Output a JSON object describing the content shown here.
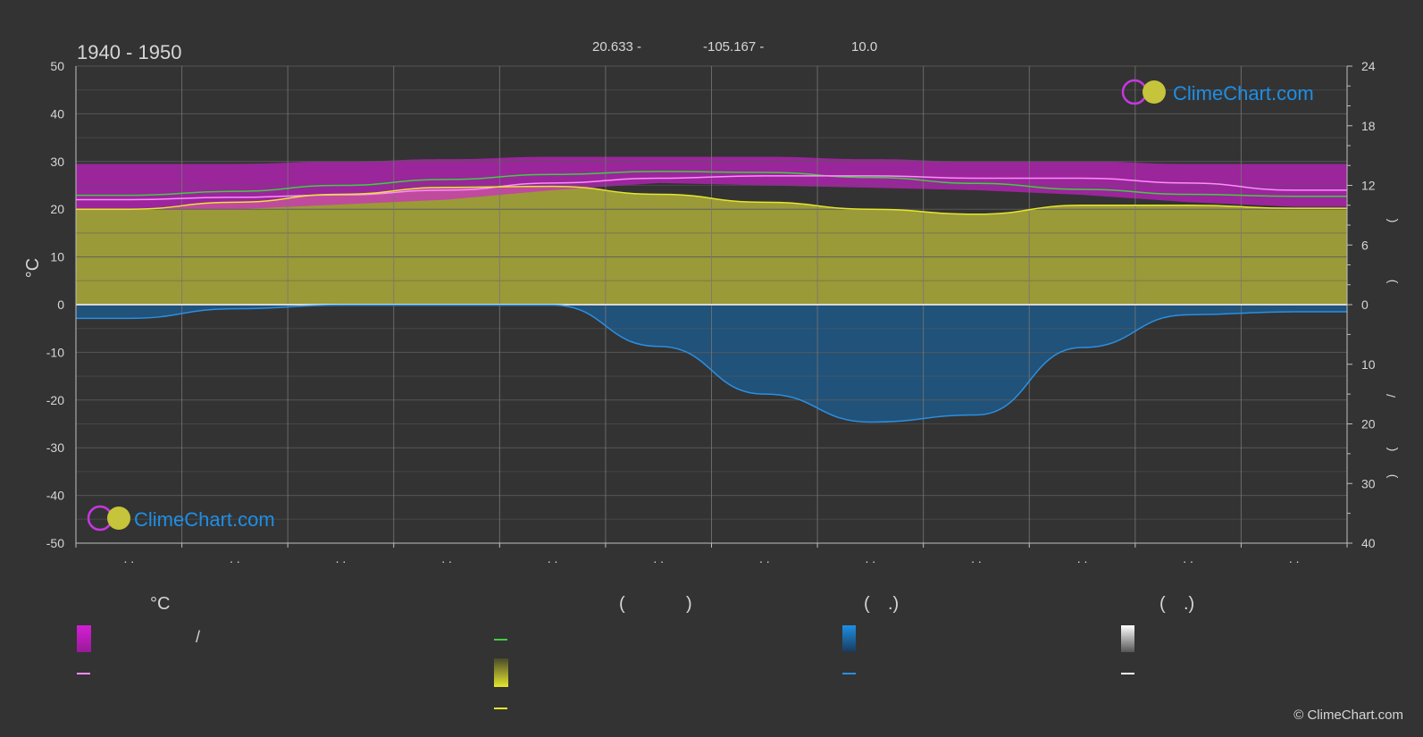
{
  "period": "1940 - 1950",
  "coords": {
    "lat": "20.633 -",
    "lon": "-105.167 -",
    "elev": "10.0"
  },
  "logo_text": "ClimeChart.com",
  "credit": "© ClimeChart.com",
  "left_unit": "°C",
  "right_unit_marks": [
    "(",
    ")",
    "(",
    ")",
    "/",
    "(",
    "·",
    ")"
  ],
  "month_marks": ". .",
  "legend": {
    "col1_title": "°C",
    "col1_slash": "/",
    "col2_title_a": "(",
    "col2_title_b": ")",
    "col3_title_a": "(",
    "col3_title_b": ".)",
    "col4_title_a": "(",
    "col4_title_b": ".)"
  },
  "colors": {
    "background": "#333333",
    "grid": "#5a5a5a",
    "temp_band": "#d41fd4",
    "temp_band_day": "#e46aa8",
    "sun_band": "#b5b43a",
    "precip_band": "#1a5f99",
    "daylight_line": "#3fce3f",
    "sun_line": "#e6e62e",
    "temp_line": "#ff8cff",
    "precip_line": "#2b8fe0",
    "logo_blue": "#1d8fe6"
  },
  "chart_data": {
    "type": "area",
    "x_months": 12,
    "left_axis": {
      "label": "°C",
      "range": [
        -50,
        50
      ],
      "ticks": [
        50,
        40,
        30,
        20,
        10,
        0,
        -10,
        -20,
        -30,
        -40,
        -50
      ]
    },
    "right_axis_top": {
      "range": [
        0,
        24
      ],
      "ticks": [
        24,
        18,
        12,
        6,
        0
      ]
    },
    "right_axis_bottom": {
      "range": [
        0,
        40
      ],
      "ticks": [
        0,
        10,
        20,
        30,
        40
      ]
    },
    "grid": true,
    "series": [
      {
        "key": "temp_max",
        "values": [
          29.5,
          29.5,
          30,
          30.5,
          31,
          31,
          31,
          30.5,
          30,
          30,
          29.5,
          29.5
        ]
      },
      {
        "key": "temp_min",
        "values": [
          20,
          20,
          21,
          22,
          24,
          25.5,
          25,
          24.5,
          24,
          23,
          21.5,
          20.5
        ]
      },
      {
        "key": "temp_mean",
        "values": [
          22,
          22.5,
          23,
          24,
          25.5,
          26.5,
          27,
          27,
          26.5,
          26.5,
          25.5,
          24
        ]
      },
      {
        "key": "daylight",
        "values": [
          11.0,
          11.4,
          12.0,
          12.6,
          13.1,
          13.4,
          13.3,
          12.8,
          12.2,
          11.6,
          11.1,
          10.9
        ]
      },
      {
        "key": "sunshine",
        "values": [
          9.6,
          10.3,
          11.1,
          11.8,
          11.9,
          11.1,
          10.3,
          9.6,
          9.1,
          10.0,
          10.0,
          9.7
        ]
      },
      {
        "key": "precipitation",
        "values": [
          2.3,
          0.7,
          0.1,
          0.1,
          0.1,
          7.0,
          15.0,
          19.7,
          18.5,
          7.2,
          1.7,
          1.2
        ]
      }
    ]
  }
}
